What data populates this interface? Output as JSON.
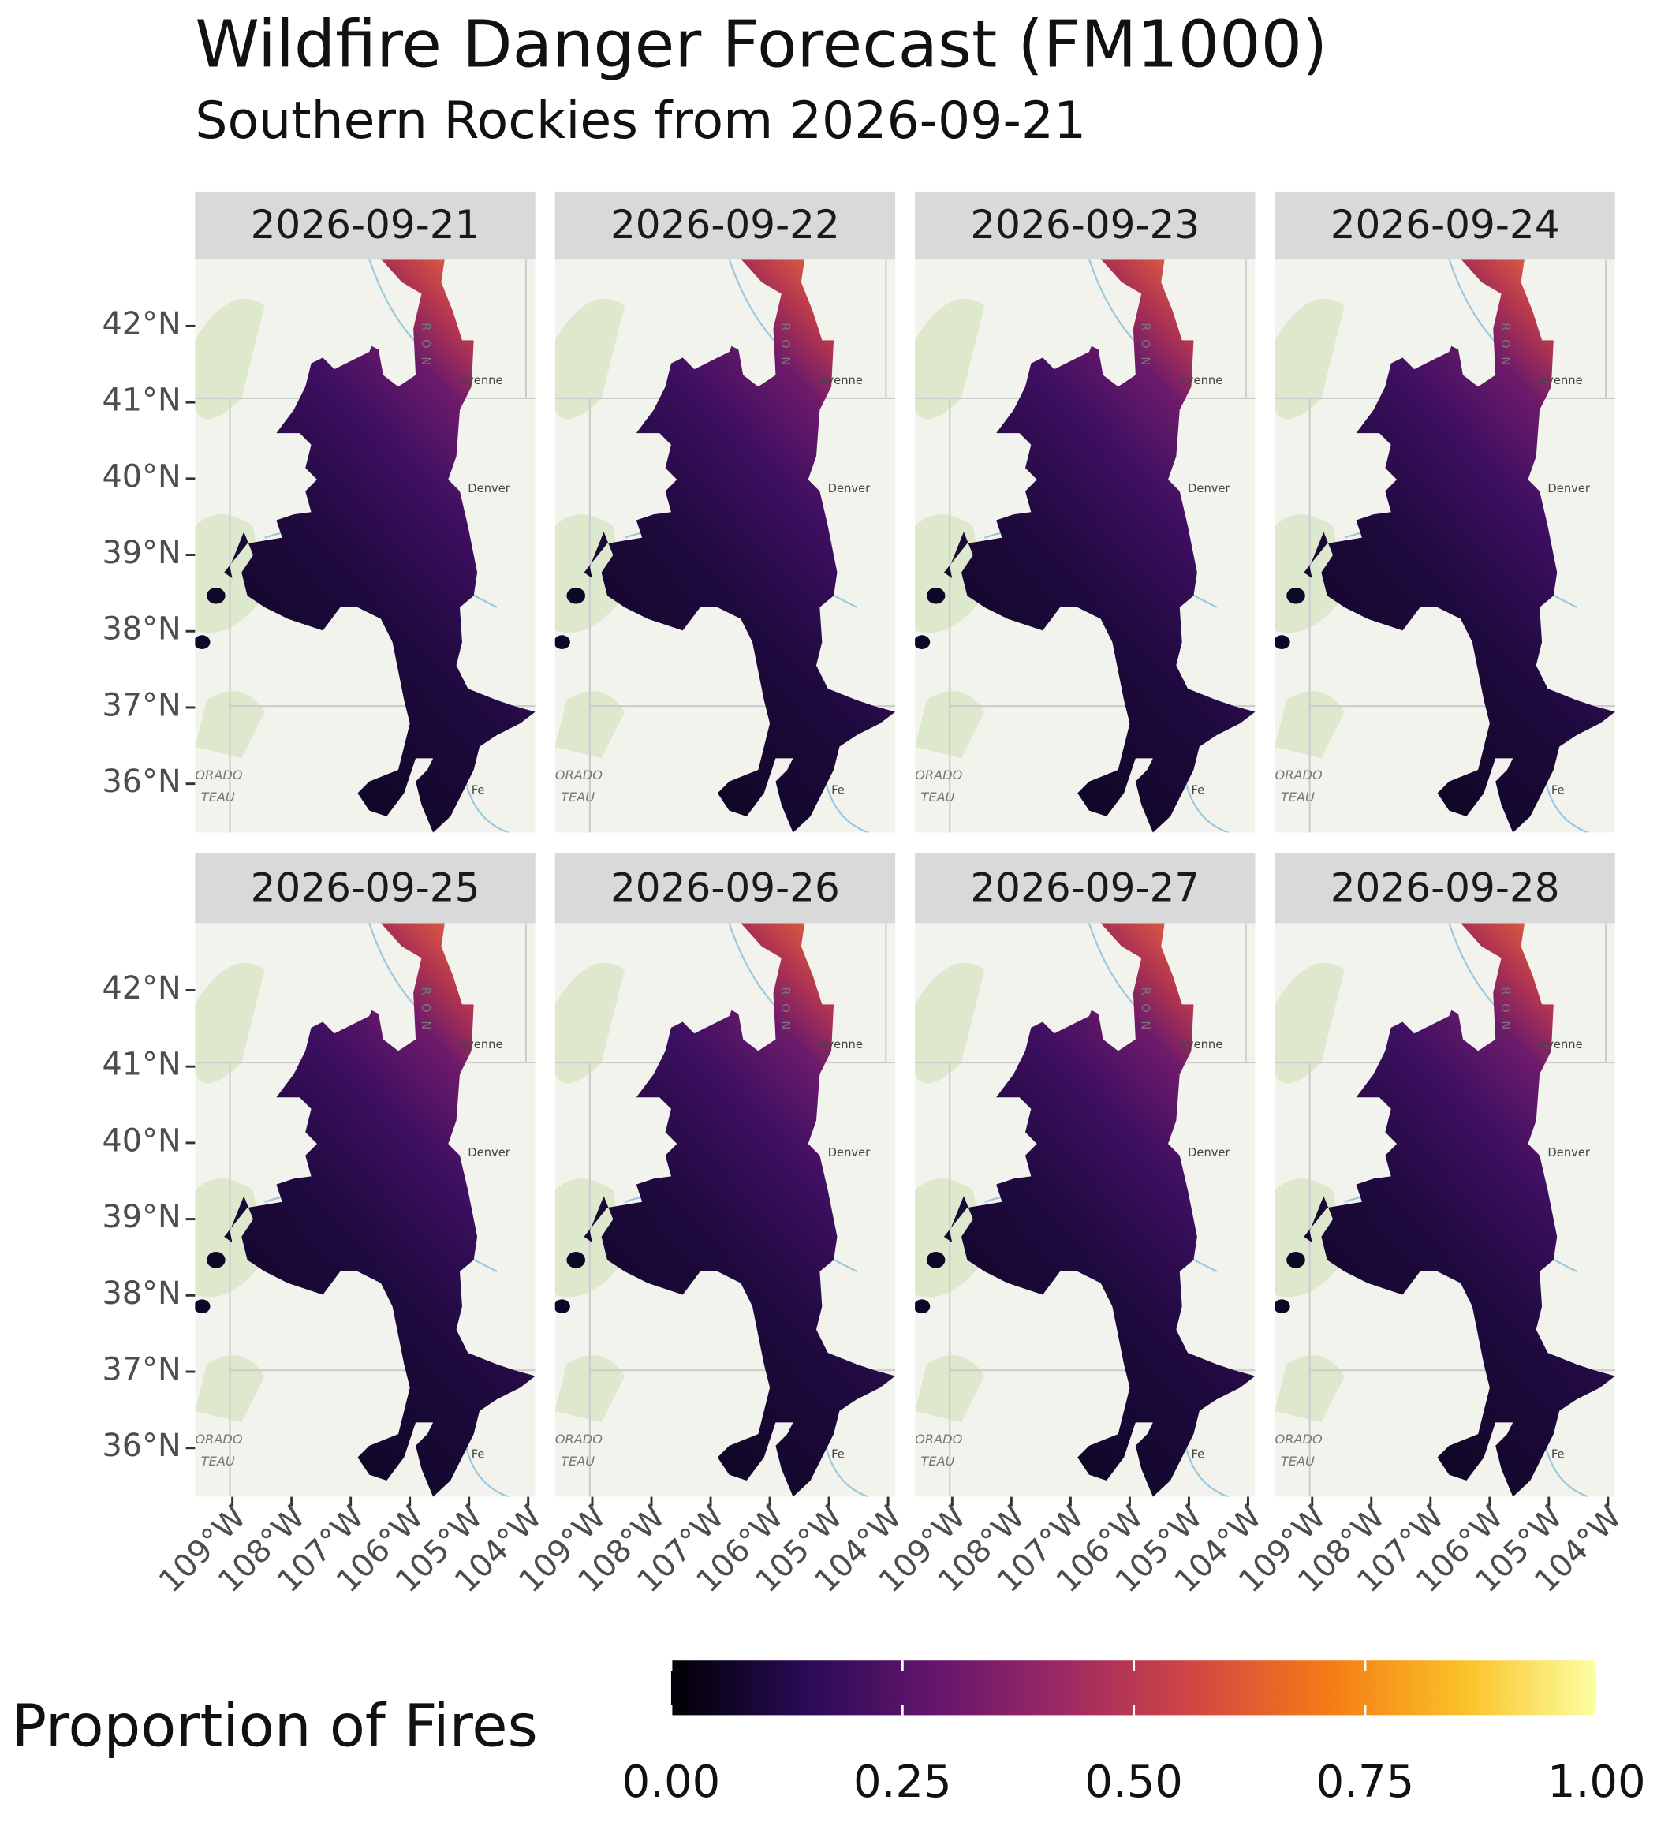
{
  "title": "Wildfire Danger Forecast (FM1000)",
  "subtitle": "Southern Rockies from 2026-09-21",
  "panels": [
    "2026-09-21",
    "2026-09-22",
    "2026-09-23",
    "2026-09-24",
    "2026-09-25",
    "2026-09-26",
    "2026-09-27",
    "2026-09-28"
  ],
  "lat_lim": [
    35.36,
    42.88
  ],
  "lon_lim": [
    -109.63,
    -103.88
  ],
  "lat_ticks": [
    {
      "value": 36,
      "label": "36°N"
    },
    {
      "value": 37,
      "label": "37°N"
    },
    {
      "value": 38,
      "label": "38°N"
    },
    {
      "value": 39,
      "label": "39°N"
    },
    {
      "value": 40,
      "label": "40°N"
    },
    {
      "value": 41,
      "label": "41°N"
    },
    {
      "value": 42,
      "label": "42°N"
    }
  ],
  "lon_ticks": [
    {
      "value": -109,
      "label": "109°W"
    },
    {
      "value": -108,
      "label": "108°W"
    },
    {
      "value": -107,
      "label": "107°W"
    },
    {
      "value": -106,
      "label": "106°W"
    },
    {
      "value": -105,
      "label": "105°W"
    },
    {
      "value": -104,
      "label": "104°W"
    }
  ],
  "basemap_labels": [
    "Denver",
    "eyenne",
    "Fe",
    "ORADO",
    "TEAU",
    "R O N"
  ],
  "legend": {
    "title": "Proportion of Fires",
    "lim": [
      0,
      1
    ],
    "ticks": [
      {
        "value": 0,
        "label": "0.00"
      },
      {
        "value": 0.25,
        "label": "0.25"
      },
      {
        "value": 0.5,
        "label": "0.50"
      },
      {
        "value": 0.75,
        "label": "0.75"
      },
      {
        "value": 1,
        "label": "1.00"
      }
    ],
    "colors": [
      "#000004",
      "#280b54",
      "#65156e",
      "#9f2a63",
      "#d44842",
      "#f57d15",
      "#fac228",
      "#fcffa4"
    ]
  }
}
